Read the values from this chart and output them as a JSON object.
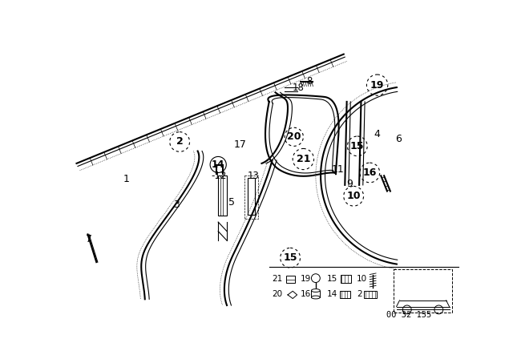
{
  "bg_color": "#ffffff",
  "line_color": "#000000",
  "fig_width": 6.4,
  "fig_height": 4.48,
  "diagram_number": "00 32 155"
}
